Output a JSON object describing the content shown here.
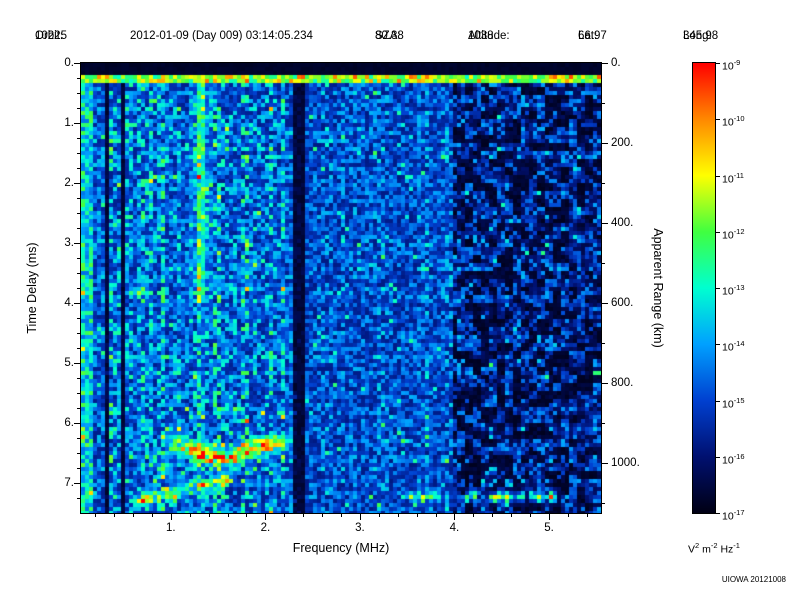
{
  "header": {
    "fields": [
      {
        "label": "Orbit:",
        "value": "10225"
      },
      {
        "label": "",
        "value": "2012-01-09 (Day 009) 03:14:05.234"
      },
      {
        "label": "SZA:",
        "value": "80.38"
      },
      {
        "label": "Altitude:",
        "value": "1038"
      },
      {
        "label": "Lat:",
        "value": "66.97"
      },
      {
        "label": "Long:",
        "value": "345.98"
      }
    ]
  },
  "chart_data": {
    "type": "heatmap",
    "xlabel": "Frequency (MHz)",
    "ylabel": "Time Delay (ms)",
    "y2label": "Apparent Range (km)",
    "x_range": [
      0.05,
      5.55
    ],
    "y_range": [
      0,
      7.5
    ],
    "y2_range": [
      0,
      1125
    ],
    "x_ticks": [
      {
        "v": 1,
        "t": "1."
      },
      {
        "v": 2,
        "t": "2."
      },
      {
        "v": 3,
        "t": "3."
      },
      {
        "v": 4,
        "t": "4."
      },
      {
        "v": 5,
        "t": "5."
      }
    ],
    "x_minor_step": 0.2,
    "y_ticks": [
      {
        "v": 0,
        "t": "0."
      },
      {
        "v": 1,
        "t": "1."
      },
      {
        "v": 2,
        "t": "2."
      },
      {
        "v": 3,
        "t": "3."
      },
      {
        "v": 4,
        "t": "4."
      },
      {
        "v": 5,
        "t": "5."
      },
      {
        "v": 6,
        "t": "6."
      },
      {
        "v": 7,
        "t": "7."
      }
    ],
    "y_minor_step": 0.25,
    "y2_ticks": [
      {
        "v": 0,
        "t": "0."
      },
      {
        "v": 200,
        "t": "200."
      },
      {
        "v": 400,
        "t": "400."
      },
      {
        "v": 600,
        "t": "600."
      },
      {
        "v": 800,
        "t": "800."
      },
      {
        "v": 1000,
        "t": "1000."
      }
    ],
    "y2_minor_step": 100,
    "colorbar": {
      "ticks": [
        {
          "b": "10",
          "e": "-9"
        },
        {
          "b": "10",
          "e": "-10"
        },
        {
          "b": "10",
          "e": "-11"
        },
        {
          "b": "10",
          "e": "-12"
        },
        {
          "b": "10",
          "e": "-13"
        },
        {
          "b": "10",
          "e": "-14"
        },
        {
          "b": "10",
          "e": "-15"
        },
        {
          "b": "10",
          "e": "-16"
        },
        {
          "b": "10",
          "e": "-17"
        }
      ],
      "unit_parts": [
        {
          "b": "V",
          "e": "2"
        },
        {
          "b": "m",
          "e": "-2"
        },
        {
          "b": "Hz",
          "e": "-1"
        }
      ]
    },
    "colormap_stops_low_to_high": [
      "#000014",
      "#001070",
      "#0040d0",
      "#00a0ff",
      "#00ffd0",
      "#40ff40",
      "#ffff00",
      "#ff8800",
      "#ff0000"
    ],
    "seed": 20121008,
    "features": {
      "blackout_top_ms": 0.18,
      "transmit_pulse": {
        "delay_ms": 0.26,
        "width_ms": 0.14
      },
      "plasma_resonance_mhz": 1.32,
      "left_edge_bright_mhz": 0.18,
      "absorption_bands": [
        {
          "center_mhz": 0.33,
          "half_width_mhz": 0.035
        },
        {
          "center_mhz": 0.5,
          "half_width_mhz": 0.025
        },
        {
          "center_mhz": 2.37,
          "half_width_mhz": 0.07
        }
      ],
      "noise_regions": [
        {
          "f_max_mhz": 2.37,
          "base": 0.16,
          "amp": 0.36
        },
        {
          "f_max_mhz": 4.0,
          "base": 0.15,
          "amp": 0.26
        },
        {
          "f_max_mhz": 5.55,
          "base": 0.07,
          "amp": 0.3
        }
      ],
      "ionospheric_echo": {
        "f_range_mhz": [
          0.85,
          2.32
        ],
        "delay_ms": 6.42,
        "wiggle_ms": 0.12,
        "width_ms": 0.14,
        "strength": 0.5
      },
      "ionospheric_echo_2": {
        "f_range_mhz": [
          0.6,
          1.6
        ],
        "delay_ms_start": 7.3,
        "delay_ms_end": 6.9,
        "width_ms": 0.12,
        "strength": 0.3
      },
      "surface_echo": {
        "f_range_mhz": [
          3.45,
          5.1
        ],
        "delay_ms": 7.2,
        "width_ms": 0.08,
        "strength": 0.42
      }
    }
  },
  "footer": {
    "credit": "UIOWA 20121008"
  }
}
